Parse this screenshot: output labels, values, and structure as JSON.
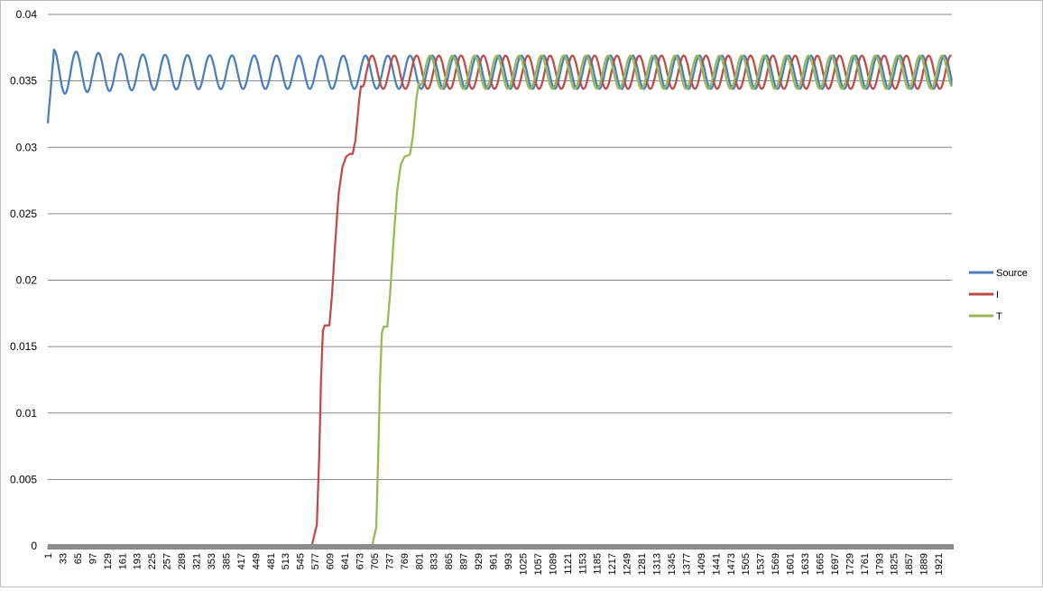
{
  "chart_data": {
    "type": "line",
    "title": "",
    "xlabel": "",
    "ylabel": "",
    "ylim": [
      0,
      0.04
    ],
    "y_ticks": [
      "0",
      "0.005",
      "0.01",
      "0.015",
      "0.02",
      "0.025",
      "0.03",
      "0.035",
      "0.04"
    ],
    "x_range": [
      1,
      1950
    ],
    "x_ticks": [
      "1",
      "33",
      "65",
      "97",
      "129",
      "161",
      "193",
      "225",
      "257",
      "289",
      "321",
      "353",
      "385",
      "417",
      "449",
      "481",
      "513",
      "545",
      "577",
      "609",
      "641",
      "673",
      "705",
      "737",
      "769",
      "801",
      "833",
      "865",
      "897",
      "929",
      "961",
      "993",
      "1025",
      "1057",
      "1089",
      "1121",
      "1153",
      "1185",
      "1217",
      "1249",
      "1281",
      "1313",
      "1345",
      "1377",
      "1409",
      "1441",
      "1473",
      "1505",
      "1537",
      "1569",
      "1601",
      "1633",
      "1665",
      "1697",
      "1729",
      "1761",
      "1793",
      "1825",
      "1857",
      "1889",
      "1921"
    ],
    "grid": true,
    "legend_position": "right",
    "series": [
      {
        "name": "Source",
        "color": "#4a7ebb",
        "shape": {
          "start_value": 0.0318,
          "peak": 0.0372,
          "center": 0.03565,
          "amplitude": 0.00125,
          "period": 48,
          "ends_at": 0.0346
        }
      },
      {
        "name": "I",
        "color": "#be4b48",
        "shape": {
          "ramp": [
            [
              570,
              0
            ],
            [
              581,
              0.0016
            ],
            [
              586,
              0.0068
            ],
            [
              590,
              0.0125
            ],
            [
              594,
              0.0162
            ],
            [
              598,
              0.0166
            ],
            [
              608,
              0.0166
            ],
            [
              614,
              0.019
            ],
            [
              620,
              0.0225
            ],
            [
              628,
              0.0265
            ],
            [
              636,
              0.0285
            ],
            [
              644,
              0.0293
            ],
            [
              652,
              0.0295
            ],
            [
              658,
              0.0295
            ],
            [
              664,
              0.0305
            ],
            [
              672,
              0.0335
            ],
            [
              676,
              0.0346
            ]
          ],
          "center": 0.03565,
          "amplitude": 0.00125,
          "period": 48,
          "phase_start": 676
        }
      },
      {
        "name": "T",
        "color": "#98b954",
        "shape": {
          "ramp": [
            [
              700,
              0
            ],
            [
              709,
              0.0014
            ],
            [
              713,
              0.0062
            ],
            [
              717,
              0.0122
            ],
            [
              721,
              0.016
            ],
            [
              725,
              0.0165
            ],
            [
              733,
              0.0165
            ],
            [
              739,
              0.019
            ],
            [
              746,
              0.0228
            ],
            [
              754,
              0.0267
            ],
            [
              762,
              0.0287
            ],
            [
              770,
              0.0293
            ],
            [
              778,
              0.0294
            ],
            [
              782,
              0.0295
            ],
            [
              788,
              0.0308
            ],
            [
              796,
              0.0338
            ],
            [
              801,
              0.0348
            ]
          ],
          "center": 0.03565,
          "amplitude": 0.00125,
          "period": 48,
          "phase_start": 801
        }
      }
    ]
  }
}
